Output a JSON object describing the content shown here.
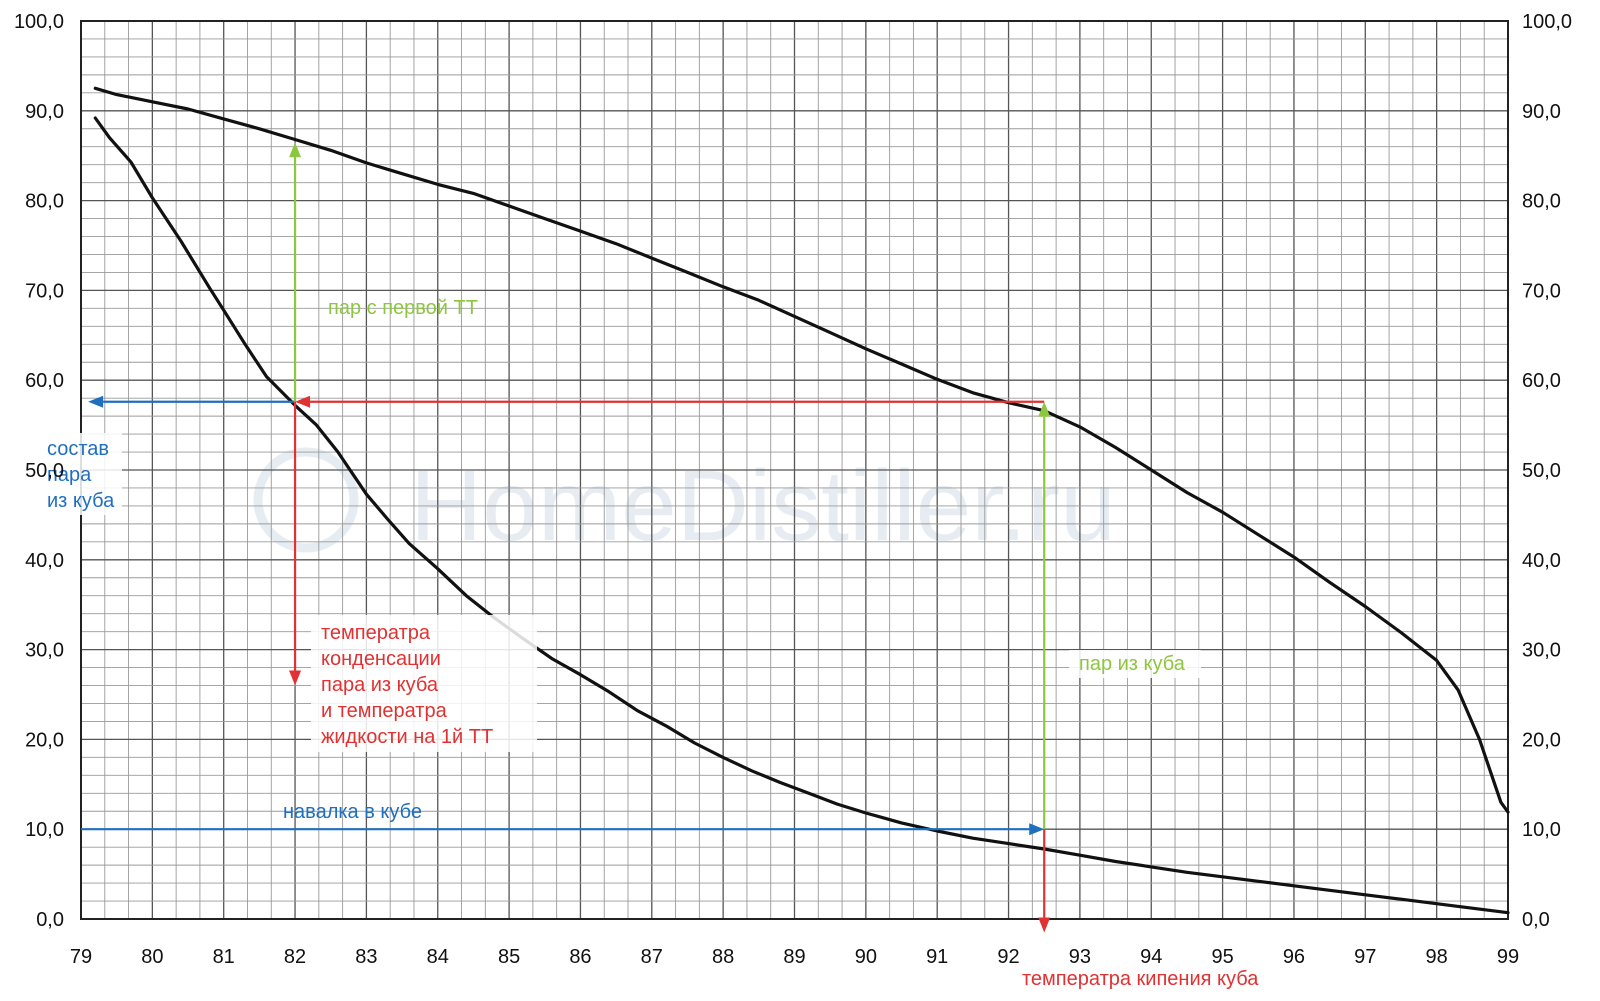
{
  "chart_data": {
    "type": "line",
    "title": "",
    "xlabel": "",
    "ylabel": "",
    "xlim": [
      79,
      99
    ],
    "ylim": [
      0,
      100
    ],
    "x_ticks": [
      "79",
      "80",
      "81",
      "82",
      "83",
      "84",
      "85",
      "86",
      "87",
      "88",
      "89",
      "90",
      "91",
      "92",
      "93",
      "94",
      "95",
      "96",
      "97",
      "98",
      "99"
    ],
    "y_ticks_left": [
      "0,0",
      "10,0",
      "20,0",
      "30,0",
      "40,0",
      "50,0",
      "60,0",
      "70,0",
      "80,0",
      "90,0",
      "100,0"
    ],
    "y_ticks_right": [
      "0,0",
      "10,0",
      "20,0",
      "30,0",
      "40,0",
      "50,0",
      "60,0",
      "70,0",
      "80,0",
      "90,0",
      "100,0"
    ],
    "grid": true,
    "series": [
      {
        "color": "#111111",
        "points": [
          [
            79.2,
            92.5
          ],
          [
            79.5,
            91.8
          ],
          [
            80,
            91
          ],
          [
            80.5,
            90.2
          ],
          [
            81,
            89.1
          ],
          [
            81.5,
            88
          ],
          [
            82,
            86.8
          ],
          [
            82.5,
            85.6
          ],
          [
            83,
            84.2
          ],
          [
            83.5,
            83
          ],
          [
            84,
            81.8
          ],
          [
            84.5,
            80.8
          ],
          [
            85,
            79.4
          ],
          [
            85.5,
            78
          ],
          [
            86,
            76.6
          ],
          [
            86.5,
            75.2
          ],
          [
            87,
            73.6
          ],
          [
            87.5,
            72
          ],
          [
            88,
            70.4
          ],
          [
            88.5,
            68.9
          ],
          [
            89,
            67.1
          ],
          [
            89.5,
            65.3
          ],
          [
            90,
            63.5
          ],
          [
            90.5,
            61.8
          ],
          [
            91,
            60.1
          ],
          [
            91.5,
            58.6
          ],
          [
            92,
            57.5
          ],
          [
            92.5,
            56.6
          ],
          [
            93,
            54.8
          ],
          [
            93.5,
            52.5
          ],
          [
            94,
            50
          ],
          [
            94.5,
            47.5
          ],
          [
            95,
            45.3
          ],
          [
            95.5,
            42.8
          ],
          [
            96,
            40.3
          ],
          [
            96.5,
            37.5
          ],
          [
            97,
            34.8
          ],
          [
            97.5,
            31.9
          ],
          [
            98,
            28.8
          ],
          [
            98.3,
            25.5
          ],
          [
            98.6,
            20
          ],
          [
            98.9,
            13
          ],
          [
            99,
            11.9
          ]
        ]
      },
      {
        "color": "#111111",
        "points": [
          [
            79.2,
            89.2
          ],
          [
            79.4,
            87
          ],
          [
            79.7,
            84.3
          ],
          [
            80,
            80.3
          ],
          [
            80.4,
            75.5
          ],
          [
            80.8,
            70.3
          ],
          [
            81,
            67.8
          ],
          [
            81.3,
            64
          ],
          [
            81.6,
            60.4
          ],
          [
            82,
            57.2
          ],
          [
            82.3,
            55
          ],
          [
            82.6,
            52
          ],
          [
            83,
            47.3
          ],
          [
            83.3,
            44.5
          ],
          [
            83.6,
            41.8
          ],
          [
            84,
            39
          ],
          [
            84.4,
            36
          ],
          [
            84.8,
            33.5
          ],
          [
            85.2,
            31.2
          ],
          [
            85.6,
            29
          ],
          [
            86,
            27.2
          ],
          [
            86.4,
            25.3
          ],
          [
            86.8,
            23.2
          ],
          [
            87.2,
            21.5
          ],
          [
            87.6,
            19.6
          ],
          [
            88,
            18
          ],
          [
            88.4,
            16.5
          ],
          [
            88.8,
            15.2
          ],
          [
            89.2,
            14
          ],
          [
            89.6,
            12.8
          ],
          [
            90,
            11.8
          ],
          [
            90.5,
            10.7
          ],
          [
            91,
            9.8
          ],
          [
            91.5,
            9
          ],
          [
            92,
            8.4
          ],
          [
            92.5,
            7.8
          ],
          [
            93,
            7.1
          ],
          [
            93.5,
            6.4
          ],
          [
            94,
            5.8
          ],
          [
            94.5,
            5.2
          ],
          [
            95,
            4.7
          ],
          [
            95.5,
            4.2
          ],
          [
            96,
            3.7
          ],
          [
            96.5,
            3.2
          ],
          [
            97,
            2.7
          ],
          [
            97.5,
            2.2
          ],
          [
            98,
            1.7
          ],
          [
            98.5,
            1.2
          ],
          [
            99,
            0.7
          ]
        ]
      }
    ],
    "annotations": [
      {
        "text": [
          "пар с первой ТТ"
        ],
        "color": "#8dc63f"
      },
      {
        "text": [
          "состав",
          "пара",
          "из куба"
        ],
        "color": "#1f6fbf"
      },
      {
        "text": [
          "температра",
          "конденсации",
          "пара из куба",
          "и температра",
          "жидкости  на 1й ТТ"
        ],
        "color": "#e03232"
      },
      {
        "text": [
          "пар из куба"
        ],
        "color": "#8dc63f"
      },
      {
        "text": [
          "навалка в кубе"
        ],
        "color": "#1f6fbf"
      },
      {
        "text": [
          "температра кипения куба"
        ],
        "color": "#e03232"
      }
    ],
    "arrows": [
      {
        "from": [
          82,
          57.6
        ],
        "to": [
          79.1,
          57.6
        ],
        "color": "#1f6fbf"
      },
      {
        "from": [
          92.5,
          57.6
        ],
        "to": [
          82,
          57.6
        ],
        "color": "#e03232"
      },
      {
        "from": [
          82,
          57.6
        ],
        "to": [
          82,
          86.5
        ],
        "color": "#8dc63f"
      },
      {
        "from": [
          82,
          57.6
        ],
        "to": [
          82,
          26
        ],
        "color": "#e03232"
      },
      {
        "from": [
          92.5,
          10
        ],
        "to": [
          92.5,
          57.6
        ],
        "color": "#8dc63f"
      },
      {
        "from": [
          79,
          10
        ],
        "to": [
          92.5,
          10
        ],
        "color": "#1f6fbf"
      },
      {
        "from": [
          92.5,
          10
        ],
        "to": [
          92.5,
          -1.5
        ],
        "color": "#e03232"
      }
    ],
    "watermark": "HomeDistiller.ru"
  }
}
